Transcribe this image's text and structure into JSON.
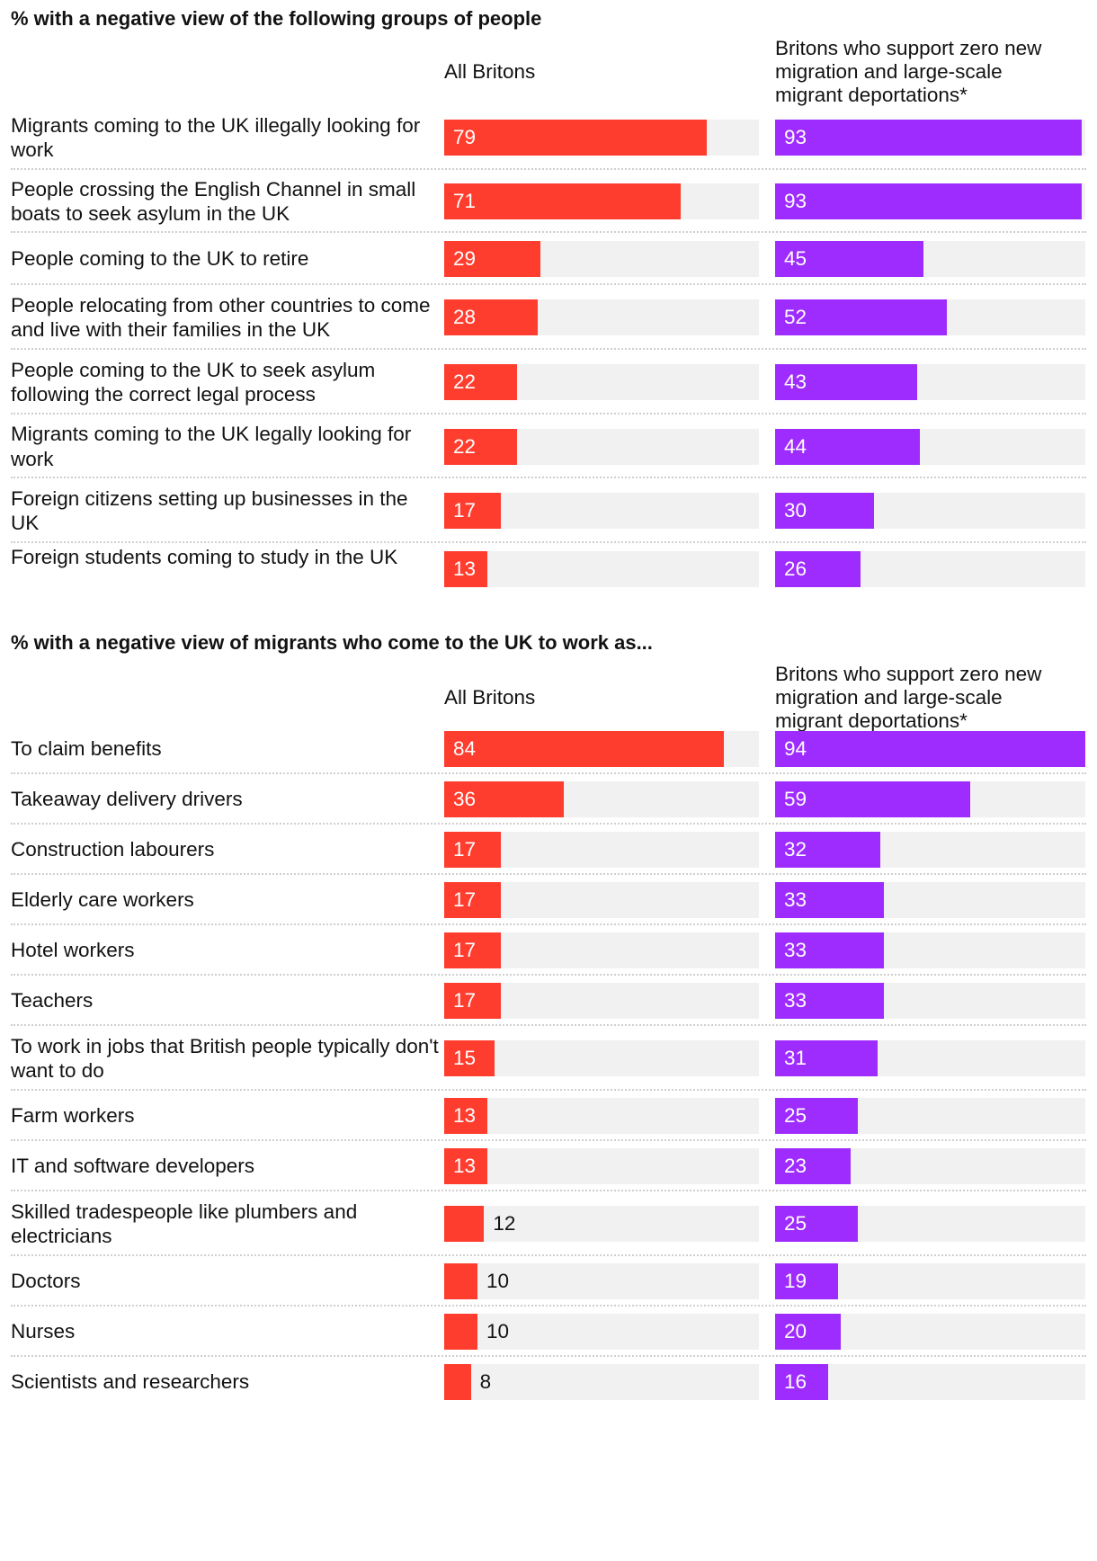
{
  "chart_data": [
    {
      "type": "bar",
      "orientation": "horizontal",
      "title": "% with a negative view of the following groups of people",
      "column_headers": [
        "All Britons",
        "Britons who support zero new migration and large-scale migrant deportations*"
      ],
      "header_lines": [
        [
          "All Britons"
        ],
        [
          "Britons who support zero new",
          "migration and large-scale",
          "migrant deportations*"
        ]
      ],
      "categories": [
        "Migrants coming to the UK illegally looking for work",
        "People crossing the English Channel in small boats to seek asylum in the UK",
        "People coming to the UK to retire",
        "People relocating from other countries to come and live with their families in the UK",
        "People coming to the UK to seek asylum following the correct legal process",
        "Migrants coming to the UK legally looking for work",
        "Foreign citizens setting up businesses in the UK",
        "Foreign students coming to study in the UK"
      ],
      "series": [
        {
          "name": "All Britons",
          "color": "#ff3d2e",
          "values": [
            79,
            71,
            29,
            28,
            22,
            22,
            17,
            13
          ]
        },
        {
          "name": "Britons who support zero new migration and large-scale migrant deportations*",
          "color": "#9e2cff",
          "values": [
            93,
            93,
            45,
            52,
            43,
            44,
            30,
            26
          ]
        }
      ],
      "xlim": [
        0,
        94
      ]
    },
    {
      "type": "bar",
      "orientation": "horizontal",
      "title": "% with a negative view of migrants who come to the UK to work as...",
      "column_headers": [
        "All Britons",
        "Britons who support zero new migration and large-scale migrant deportations*"
      ],
      "header_lines": [
        [
          "All Britons"
        ],
        [
          "Britons who support zero new",
          "migration and large-scale",
          "migrant deportations*"
        ]
      ],
      "categories": [
        "To claim benefits",
        "Takeaway delivery drivers",
        "Construction labourers",
        "Elderly care workers",
        "Hotel workers",
        "Teachers",
        "To work in jobs that British people typically don't want to do",
        "Farm workers",
        "IT and software developers",
        "Skilled tradespeople like plumbers and electricians",
        "Doctors",
        "Nurses",
        "Scientists and researchers"
      ],
      "series": [
        {
          "name": "All Britons",
          "color": "#ff3d2e",
          "values": [
            84,
            36,
            17,
            17,
            17,
            17,
            15,
            13,
            13,
            12,
            10,
            10,
            8
          ]
        },
        {
          "name": "Britons who support zero new migration and large-scale migrant deportations*",
          "color": "#9e2cff",
          "values": [
            94,
            59,
            32,
            33,
            33,
            33,
            31,
            25,
            23,
            25,
            19,
            20,
            16
          ]
        }
      ],
      "xlim": [
        0,
        94
      ]
    }
  ]
}
